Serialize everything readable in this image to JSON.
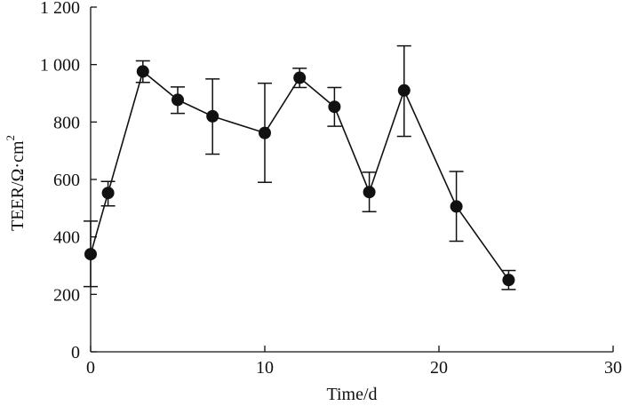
{
  "chart_data": {
    "type": "line",
    "title": "",
    "xlabel": "Time/d",
    "ylabel": "TEER/Ω·cm",
    "ylabel_superscript": "2",
    "xlim": [
      0,
      30
    ],
    "ylim": [
      0,
      1200
    ],
    "xticks": [
      0,
      10,
      20,
      30
    ],
    "xtick_labels": [
      "0",
      "10",
      "20",
      "30"
    ],
    "yticks": [
      0,
      200,
      400,
      600,
      800,
      1000,
      1200
    ],
    "ytick_labels": [
      "0",
      "200",
      "400",
      "600",
      "800",
      "1 000",
      "1 200"
    ],
    "grid": false,
    "series": [
      {
        "name": "TEER",
        "marker": "filled-circle",
        "x": [
          0,
          1,
          3,
          5,
          7,
          10,
          12,
          14,
          16,
          18,
          21,
          24
        ],
        "y": [
          340,
          553,
          976,
          877,
          820,
          762,
          954,
          853,
          556,
          910,
          506,
          250
        ],
        "error_low": [
          227,
          508,
          938,
          830,
          688,
          590,
          920,
          785,
          488,
          750,
          385,
          217
        ],
        "error_high": [
          455,
          593,
          1013,
          922,
          950,
          935,
          987,
          920,
          625,
          1065,
          628,
          283
        ]
      }
    ]
  }
}
